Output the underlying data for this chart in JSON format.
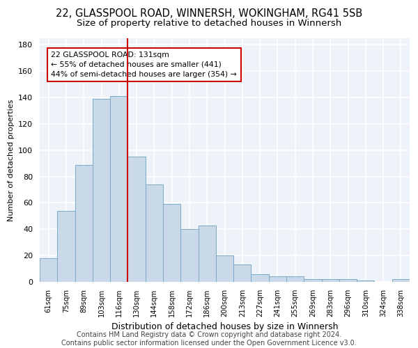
{
  "title1": "22, GLASSPOOL ROAD, WINNERSH, WOKINGHAM, RG41 5SB",
  "title2": "Size of property relative to detached houses in Winnersh",
  "xlabel": "Distribution of detached houses by size in Winnersh",
  "ylabel": "Number of detached properties",
  "categories": [
    "61sqm",
    "75sqm",
    "89sqm",
    "103sqm",
    "116sqm",
    "130sqm",
    "144sqm",
    "158sqm",
    "172sqm",
    "186sqm",
    "200sqm",
    "213sqm",
    "227sqm",
    "241sqm",
    "255sqm",
    "269sqm",
    "283sqm",
    "296sqm",
    "310sqm",
    "324sqm",
    "338sqm"
  ],
  "values": [
    18,
    54,
    89,
    139,
    141,
    95,
    74,
    59,
    40,
    43,
    20,
    13,
    6,
    4,
    4,
    2,
    2,
    2,
    1,
    0,
    2
  ],
  "bar_color": "#c9d9e8",
  "bar_edge_color": "#7aaac8",
  "vline_x": 4.5,
  "vline_color": "#cc0000",
  "annotation_text": "22 GLASSPOOL ROAD: 131sqm\n← 55% of detached houses are smaller (441)\n44% of semi-detached houses are larger (354) →",
  "annotation_box_color": "white",
  "annotation_box_edge": "#cc0000",
  "ylim": [
    0,
    185
  ],
  "yticks": [
    0,
    20,
    40,
    60,
    80,
    100,
    120,
    140,
    160,
    180
  ],
  "footer": "Contains HM Land Registry data © Crown copyright and database right 2024.\nContains public sector information licensed under the Open Government Licence v3.0.",
  "bg_color": "#eef3fa",
  "grid_color": "#ffffff",
  "title1_fontsize": 10.5,
  "title2_fontsize": 9.5,
  "footer_fontsize": 7
}
